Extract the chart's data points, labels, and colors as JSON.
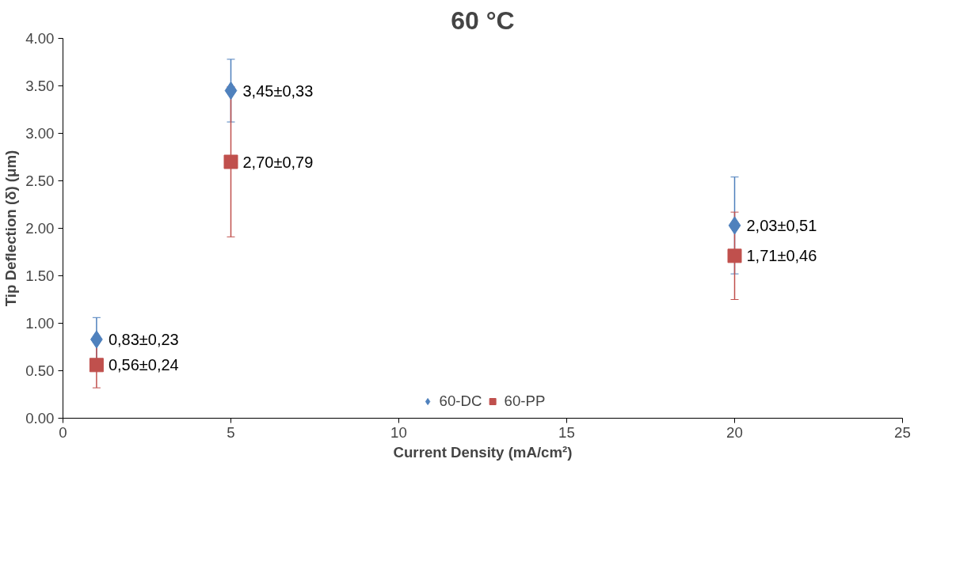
{
  "chart_data": {
    "type": "scatter",
    "title": "60 °C",
    "xlabel": "Current Density (mA/cm²)",
    "ylabel": "Tip Deflection (δ) (μm)",
    "x": [
      1,
      5,
      20
    ],
    "series": [
      {
        "name": "60-DC",
        "color": "#4f81bd",
        "marker": "diamond",
        "values": [
          0.83,
          3.45,
          2.03
        ],
        "errors": [
          0.23,
          0.33,
          0.51
        ],
        "value_labels": [
          "0,83±0,23",
          "3,45±0,33",
          "2,03±0,51"
        ]
      },
      {
        "name": "60-PP",
        "color": "#c0504d",
        "marker": "square",
        "values": [
          0.56,
          2.7,
          1.71
        ],
        "errors": [
          0.24,
          0.79,
          0.46
        ],
        "value_labels": [
          "0,56±0,24",
          "2,70±0,79",
          "1,71±0,46"
        ]
      }
    ],
    "xlim": [
      0,
      25
    ],
    "xticks": [
      0,
      5,
      10,
      15,
      20,
      25
    ],
    "ylim": [
      0,
      4
    ],
    "yticks": [
      {
        "value": 0,
        "label": "0.00"
      },
      {
        "value": 0.5,
        "label": "0.50"
      },
      {
        "value": 1,
        "label": "1.00"
      },
      {
        "value": 1.5,
        "label": "1.50"
      },
      {
        "value": 2,
        "label": "2.00"
      },
      {
        "value": 2.5,
        "label": "2.50"
      },
      {
        "value": 3,
        "label": "3.00"
      },
      {
        "value": 3.5,
        "label": "3.50"
      },
      {
        "value": 4,
        "label": "4.00"
      }
    ],
    "grid": false,
    "legend": "bottom"
  }
}
